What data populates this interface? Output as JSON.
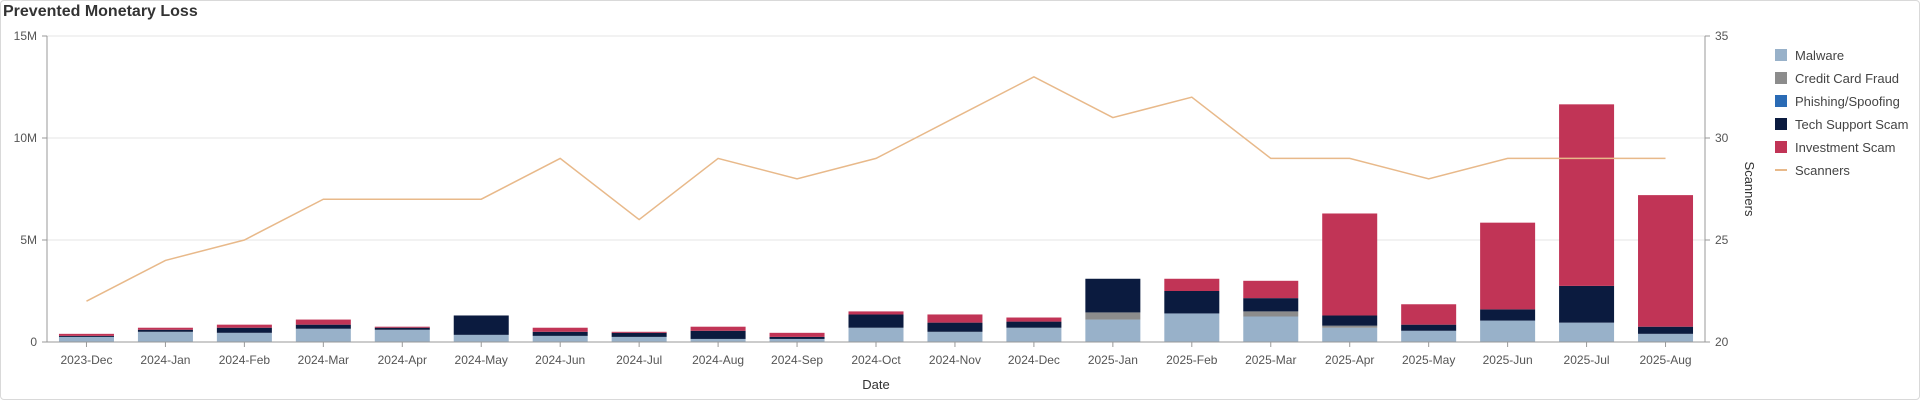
{
  "panel": {
    "title": "Prevented Monetary Loss"
  },
  "chart_data": {
    "type": "bar",
    "stacked": true,
    "categories": [
      "2023-Dec",
      "2024-Jan",
      "2024-Feb",
      "2024-Mar",
      "2024-Apr",
      "2024-May",
      "2024-Jun",
      "2024-Jul",
      "2024-Aug",
      "2024-Sep",
      "2024-Oct",
      "2024-Nov",
      "2024-Dec",
      "2025-Jan",
      "2025-Feb",
      "2025-Mar",
      "2025-Apr",
      "2025-May",
      "2025-Jun",
      "2025-Jul",
      "2025-Aug"
    ],
    "xlabel": "Date",
    "ylabel": "",
    "y2label": "Scanners",
    "ylim": [
      0,
      15000000
    ],
    "y2lim": [
      20,
      35
    ],
    "yticks": [
      {
        "value": 0,
        "label": "0"
      },
      {
        "value": 5000000,
        "label": "5M"
      },
      {
        "value": 10000000,
        "label": "10M"
      },
      {
        "value": 15000000,
        "label": "15M"
      }
    ],
    "y2ticks": [
      {
        "value": 20,
        "label": "20"
      },
      {
        "value": 25,
        "label": "25"
      },
      {
        "value": 30,
        "label": "30"
      },
      {
        "value": 35,
        "label": "35"
      }
    ],
    "grid": true,
    "legend_position": "right",
    "series": [
      {
        "name": "Malware",
        "color": "#98b1c9",
        "values": [
          250000,
          500000,
          450000,
          650000,
          600000,
          350000,
          300000,
          250000,
          150000,
          150000,
          700000,
          500000,
          700000,
          1100000,
          1400000,
          1250000,
          700000,
          550000,
          1050000,
          950000,
          400000
        ]
      },
      {
        "name": "Credit Card Fraud",
        "color": "#8c8c8c",
        "values": [
          0,
          0,
          0,
          0,
          0,
          0,
          0,
          0,
          0,
          0,
          0,
          0,
          0,
          350000,
          0,
          250000,
          100000,
          0,
          0,
          0,
          0
        ]
      },
      {
        "name": "Phishing/Spoofing",
        "color": "#2a6bb5",
        "values": [
          0,
          0,
          0,
          0,
          0,
          0,
          0,
          0,
          0,
          0,
          0,
          0,
          0,
          0,
          0,
          0,
          0,
          0,
          0,
          0,
          0
        ]
      },
      {
        "name": "Tech Support Scam",
        "color": "#0b1b3f",
        "values": [
          50000,
          100000,
          250000,
          200000,
          100000,
          950000,
          200000,
          200000,
          400000,
          100000,
          650000,
          450000,
          300000,
          1650000,
          1100000,
          650000,
          500000,
          300000,
          550000,
          1800000,
          350000
        ]
      },
      {
        "name": "Investment Scam",
        "color": "#c13456",
        "values": [
          100000,
          100000,
          150000,
          250000,
          50000,
          0,
          200000,
          50000,
          200000,
          200000,
          150000,
          400000,
          200000,
          0,
          600000,
          850000,
          5000000,
          1000000,
          4250000,
          8900000,
          6450000
        ]
      },
      {
        "name": "Scanners",
        "type": "line",
        "axis": "right",
        "color": "#e8b98a",
        "values": [
          22,
          24,
          25,
          27,
          27,
          27,
          29,
          26,
          29,
          28,
          29,
          31,
          33,
          31,
          32,
          29,
          29,
          28,
          29,
          29,
          29
        ]
      }
    ]
  }
}
